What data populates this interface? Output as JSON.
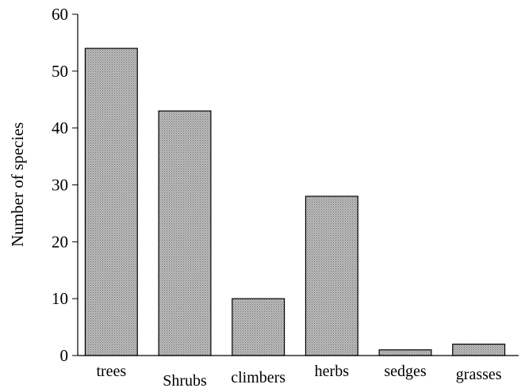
{
  "chart_data": {
    "type": "bar",
    "categories": [
      "trees",
      "Shrubs",
      "climbers",
      "herbs",
      "sedges",
      "grasses"
    ],
    "values": [
      54,
      43,
      10,
      28,
      1,
      2
    ],
    "title": "",
    "xlabel": "",
    "ylabel": "Number of species",
    "ylim": [
      0,
      60
    ],
    "yticks": [
      0,
      10,
      20,
      30,
      40,
      50,
      60
    ],
    "grid": false,
    "bar_color": "#a9a9a9"
  }
}
